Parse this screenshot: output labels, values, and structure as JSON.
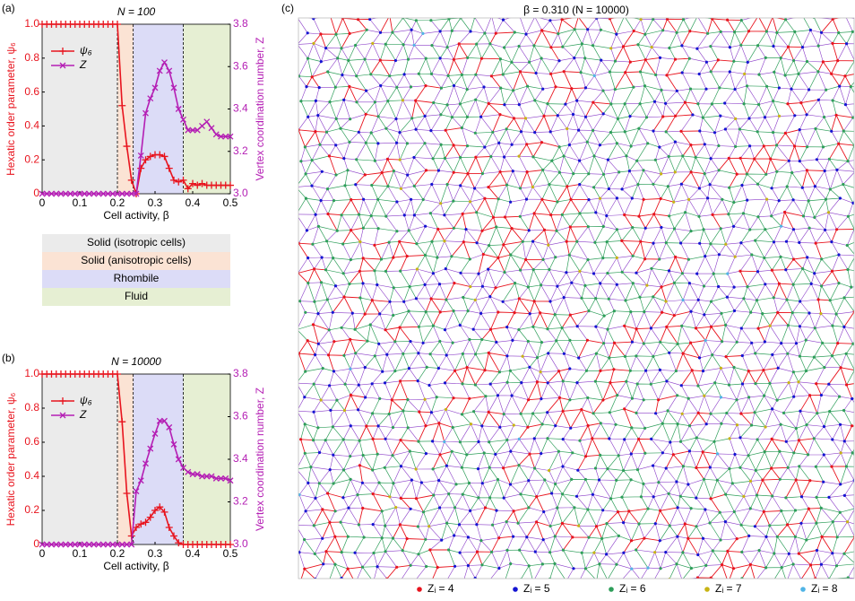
{
  "panel_labels": [
    "(a)",
    "(b)",
    "(c)"
  ],
  "phases": [
    {
      "label": "Solid (isotropic cells)",
      "color": "#ebebeb",
      "start": 0,
      "end": 0.2
    },
    {
      "label": "Solid (anisotropic cells)",
      "color": "#fbe3d4",
      "start": 0.2,
      "end": 0.242
    },
    {
      "label": "Rhombile",
      "color": "#dcdcf7",
      "start": 0.242,
      "end": 0.375
    },
    {
      "label": "Fluid",
      "color": "#e6efd3",
      "start": 0.375,
      "end": 0.5
    }
  ],
  "chart_data": [
    {
      "type": "line",
      "title": "N = 100",
      "xlabel": "Cell activity, β",
      "ylabel": "Hexatic order parameter, ψ₆",
      "y2label": "Vertex coordination number, Z",
      "x": [
        0,
        0.0125,
        0.025,
        0.0375,
        0.05,
        0.0625,
        0.075,
        0.0875,
        0.1,
        0.1125,
        0.125,
        0.1375,
        0.15,
        0.1625,
        0.175,
        0.1875,
        0.2,
        0.2125,
        0.225,
        0.2375,
        0.25,
        0.2625,
        0.275,
        0.2875,
        0.3,
        0.3125,
        0.325,
        0.3375,
        0.35,
        0.3625,
        0.375,
        0.3875,
        0.4,
        0.4125,
        0.425,
        0.4375,
        0.45,
        0.4625,
        0.475,
        0.4875,
        0.5
      ],
      "xlim": [
        0,
        0.5
      ],
      "ylim": [
        0,
        1
      ],
      "y2lim": [
        3.0,
        3.8
      ],
      "xticks": [
        0,
        0.1,
        0.2,
        0.3,
        0.4,
        0.5
      ],
      "yticks": [
        0,
        0.2,
        0.4,
        0.6,
        0.8,
        {
          "value": 1,
          "label": "1.0"
        }
      ],
      "y2ticks": [
        {
          "value": 3,
          "label": "3.0"
        },
        3.2,
        3.4,
        3.6,
        3.8
      ],
      "series": [
        {
          "name": "ψ₆",
          "color": "#e8141e",
          "marker": "+",
          "values": [
            1,
            1,
            1,
            1,
            1,
            1,
            1,
            1,
            1,
            1,
            1,
            1,
            1,
            1,
            1,
            1,
            1,
            0.52,
            0.28,
            0.08,
            0.0,
            0.15,
            0.2,
            0.22,
            0.23,
            0.23,
            0.22,
            0.15,
            0.08,
            0.07,
            0.08,
            0.03,
            0.06,
            0.05,
            0.06,
            0.05,
            0.05,
            0.05,
            0.05,
            0.05,
            0.05
          ]
        },
        {
          "name": "Z",
          "color": "#b41eb4",
          "marker": "x",
          "axis": "y2",
          "values": [
            3,
            3,
            3,
            3,
            3,
            3,
            3,
            3,
            3,
            3,
            3,
            3,
            3,
            3,
            3,
            3,
            3,
            3,
            3,
            3,
            3,
            3.18,
            3.38,
            3.45,
            3.5,
            3.58,
            3.62,
            3.58,
            3.5,
            3.4,
            3.35,
            3.3,
            3.3,
            3.3,
            3.32,
            3.34,
            3.31,
            3.28,
            3.27,
            3.27,
            3.27
          ]
        }
      ]
    },
    {
      "type": "line",
      "title": "N = 10000",
      "xlabel": "Cell activity, β",
      "ylabel": "Hexatic order parameter, ψ₆",
      "y2label": "Vertex coordination number, Z",
      "x": [
        0,
        0.0125,
        0.025,
        0.0375,
        0.05,
        0.0625,
        0.075,
        0.0875,
        0.1,
        0.1125,
        0.125,
        0.1375,
        0.15,
        0.1625,
        0.175,
        0.1875,
        0.2,
        0.2125,
        0.225,
        0.2375,
        0.25,
        0.2625,
        0.275,
        0.2875,
        0.3,
        0.3125,
        0.325,
        0.3375,
        0.35,
        0.3625,
        0.375,
        0.3875,
        0.4,
        0.4125,
        0.425,
        0.4375,
        0.45,
        0.4625,
        0.475,
        0.4875,
        0.5
      ],
      "xlim": [
        0,
        0.5
      ],
      "ylim": [
        0,
        1
      ],
      "y2lim": [
        3.0,
        3.8
      ],
      "xticks": [
        0,
        0.1,
        0.2,
        0.3,
        0.4,
        0.5
      ],
      "yticks": [
        0,
        0.2,
        0.4,
        0.6,
        0.8,
        {
          "value": 1,
          "label": "1.0"
        }
      ],
      "y2ticks": [
        {
          "value": 3,
          "label": "3.0"
        },
        3.2,
        3.4,
        3.6,
        3.8
      ],
      "series": [
        {
          "name": "ψ₆",
          "color": "#e8141e",
          "marker": "+",
          "values": [
            1,
            1,
            1,
            1,
            1,
            1,
            1,
            1,
            1,
            1,
            1,
            1,
            1,
            1,
            1,
            1,
            1,
            0.72,
            0.3,
            0.05,
            0.1,
            0.12,
            0.13,
            0.16,
            0.2,
            0.22,
            0.19,
            0.1,
            0.05,
            0.01,
            0,
            0,
            0,
            0,
            0,
            0,
            0,
            0,
            0,
            0,
            0
          ]
        },
        {
          "name": "Z",
          "color": "#b41eb4",
          "marker": "x",
          "axis": "y2",
          "values": [
            3,
            3,
            3,
            3,
            3,
            3,
            3,
            3,
            3,
            3,
            3,
            3,
            3,
            3,
            3,
            3,
            3,
            3,
            3,
            3,
            3.25,
            3.3,
            3.38,
            3.45,
            3.52,
            3.58,
            3.58,
            3.55,
            3.47,
            3.4,
            3.36,
            3.34,
            3.33,
            3.33,
            3.32,
            3.32,
            3.32,
            3.31,
            3.31,
            3.31,
            3.3
          ]
        }
      ]
    }
  ],
  "network": {
    "title": "β = 0.310 (N = 10000)",
    "legend": [
      {
        "label": "Zᵢ = 4",
        "color": "#e8141e"
      },
      {
        "label": "Zᵢ = 5",
        "color": "#1414d2"
      },
      {
        "label": "Zᵢ = 6",
        "color": "#2e9e5a"
      },
      {
        "label": "Zᵢ = 7",
        "color": "#c8b414"
      },
      {
        "label": "Zᵢ = 8",
        "color": "#50b4e6"
      }
    ]
  }
}
